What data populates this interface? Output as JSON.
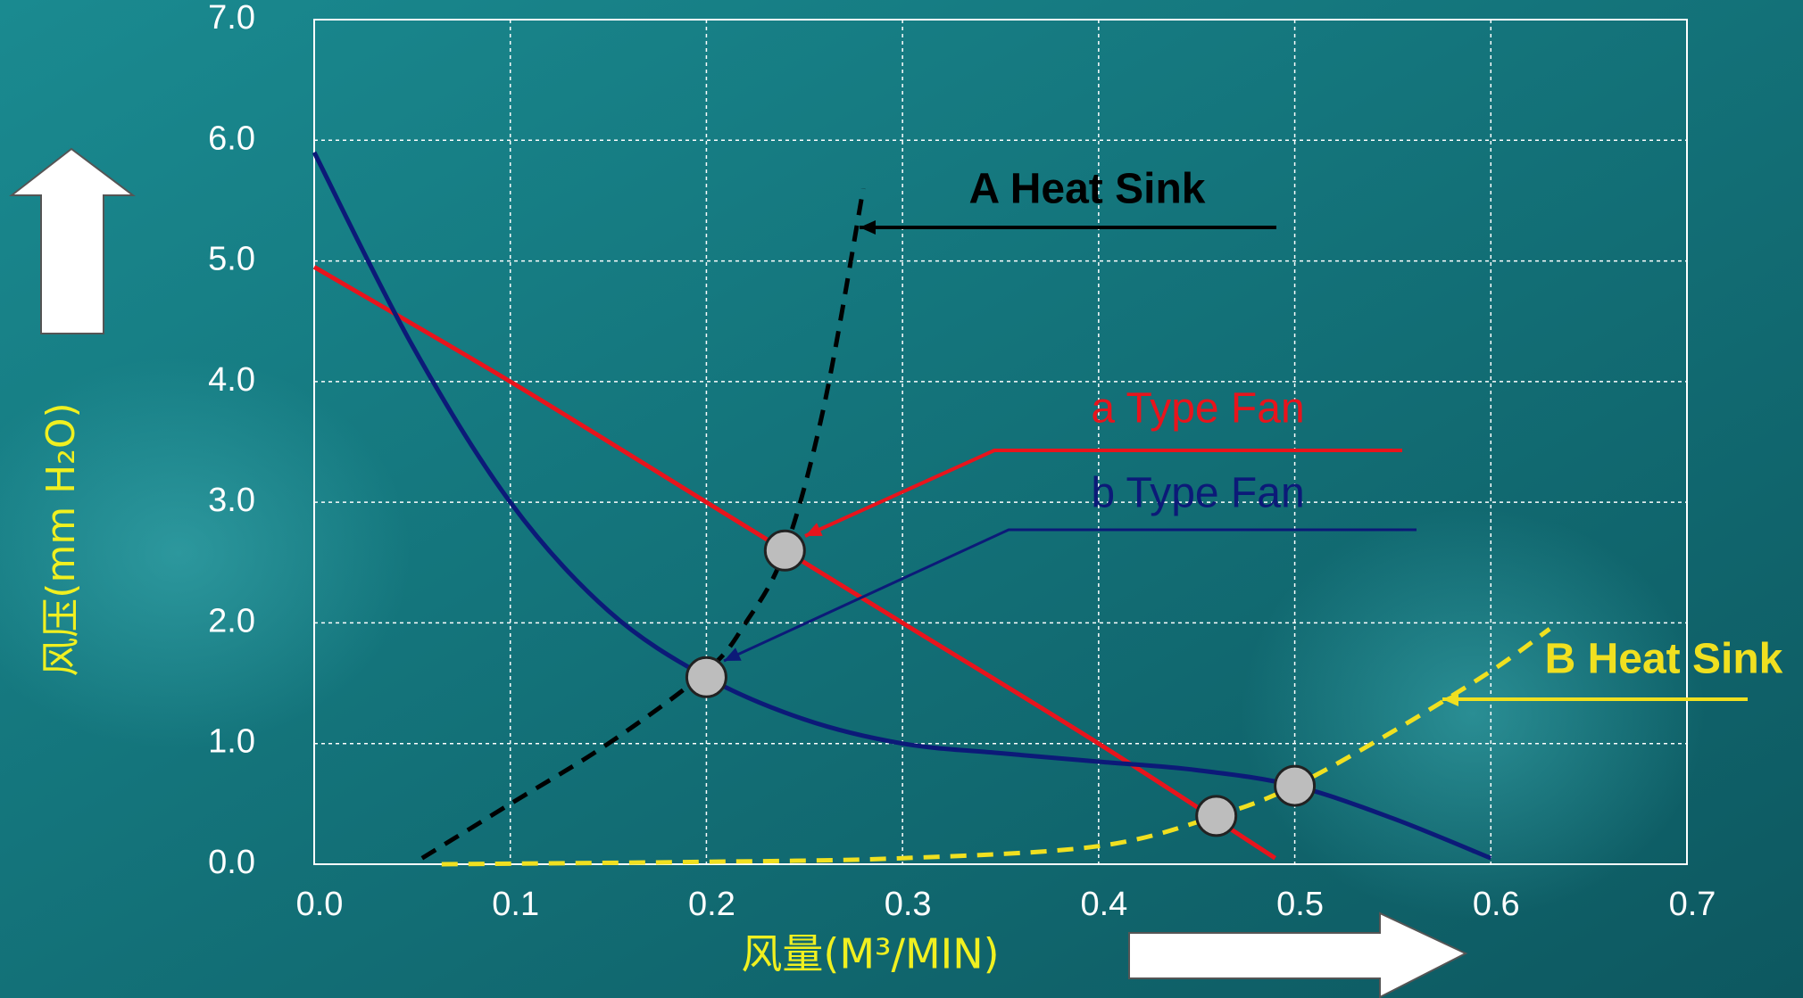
{
  "chart_data": {
    "type": "line",
    "x_label": "风量(M³/MIN)",
    "y_label": "风压(mm H₂O)",
    "xlim": [
      0,
      0.7
    ],
    "ylim": [
      0,
      7
    ],
    "xticks": [
      {
        "value": 0,
        "label": "0.0"
      },
      0.1,
      0.2,
      0.3,
      0.4,
      0.5,
      0.6,
      0.7
    ],
    "yticks": [
      {
        "value": 0,
        "label": "0.0"
      },
      {
        "value": 1,
        "label": "1.0"
      },
      {
        "value": 2,
        "label": "2.0"
      },
      {
        "value": 3,
        "label": "3.0"
      },
      {
        "value": 4,
        "label": "4.0"
      },
      {
        "value": 5,
        "label": "5.0"
      },
      {
        "value": 6,
        "label": "6.0"
      },
      {
        "value": 7,
        "label": "7.0"
      }
    ],
    "grid": true,
    "series": [
      {
        "name": "a Type Fan",
        "color": "#e8141c",
        "dashed": false,
        "x": [
          0,
          0.1,
          0.2,
          0.3,
          0.4,
          0.49
        ],
        "values": [
          4.95,
          4.0,
          3.0,
          2.0,
          1.0,
          0.05
        ]
      },
      {
        "name": "b Type Fan",
        "color": "#0c1a78",
        "dashed": false,
        "x": [
          0,
          0.05,
          0.1,
          0.15,
          0.2,
          0.25,
          0.3,
          0.35,
          0.4,
          0.45,
          0.5,
          0.55,
          0.6
        ],
        "values": [
          5.9,
          4.3,
          3.0,
          2.1,
          1.55,
          1.2,
          1.0,
          0.92,
          0.85,
          0.78,
          0.65,
          0.38,
          0.05
        ]
      },
      {
        "name": "A Heat Sink",
        "color": "#000000",
        "dashed": true,
        "x": [
          0.055,
          0.1,
          0.15,
          0.2,
          0.22,
          0.24,
          0.26,
          0.28
        ],
        "values": [
          0.05,
          0.5,
          1.0,
          1.6,
          2.0,
          2.6,
          3.8,
          5.6
        ]
      },
      {
        "name": "B Heat Sink",
        "color": "#f0e020",
        "dashed": true,
        "x": [
          0.065,
          0.2,
          0.3,
          0.4,
          0.46,
          0.5,
          0.55,
          0.6,
          0.63
        ],
        "values": [
          0.0,
          0.02,
          0.05,
          0.15,
          0.4,
          0.65,
          1.1,
          1.6,
          1.95
        ]
      }
    ],
    "operating_points": {
      "x": [
        0.24,
        0.2,
        0.46,
        0.5
      ],
      "values": [
        2.6,
        1.55,
        0.4,
        0.65
      ]
    }
  }
}
